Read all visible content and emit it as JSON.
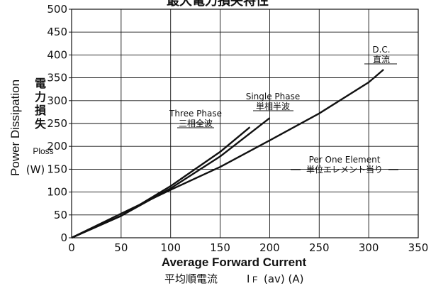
{
  "chart_data": {
    "type": "line",
    "title": "最大電力損失特性",
    "xlabel": "Average Forward Current",
    "xlabel_jp": "平均順電流",
    "xlabel_symbol": "I",
    "xlabel_symbol_sub": "F",
    "xlabel_units": "(av) (A)",
    "ylabel": "Power Dissipation",
    "ylabel_jp": [
      "電",
      "力",
      "損",
      "失"
    ],
    "ylabel_symbol": "Ploss",
    "ylabel_units": "(W)",
    "xlim": [
      0,
      350
    ],
    "ylim": [
      0,
      500
    ],
    "xticks": [
      "0",
      "50",
      "100",
      "150",
      "200",
      "250",
      "300",
      "350"
    ],
    "yticks": [
      "0",
      "50",
      "100",
      "150",
      "200",
      "250",
      "300",
      "350",
      "400",
      "450",
      "500"
    ],
    "grid": true,
    "series": [
      {
        "name": "Three Phase",
        "name_jp": "三相全波",
        "x": [
          0,
          50,
          100,
          150,
          180
        ],
        "y": [
          0,
          48,
          113,
          188,
          242
        ]
      },
      {
        "name": "Single Phase",
        "name_jp": "単相半波",
        "x": [
          0,
          50,
          100,
          150,
          200
        ],
        "y": [
          0,
          48,
          108,
          178,
          262
        ]
      },
      {
        "name": "D.C.",
        "name_jp": "直流",
        "x": [
          0,
          50,
          100,
          150,
          200,
          250,
          300,
          315
        ],
        "y": [
          0,
          53,
          105,
          155,
          213,
          272,
          340,
          368
        ]
      }
    ],
    "annotations": [
      {
        "text": "Per One Element",
        "text_jp": "単位エレメント当り"
      }
    ]
  }
}
